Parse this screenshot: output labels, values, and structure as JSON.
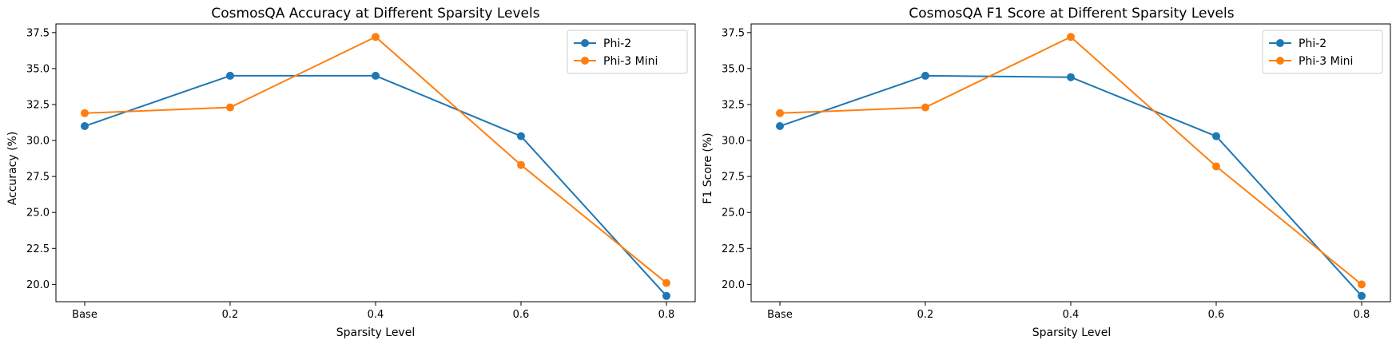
{
  "chart_data": [
    {
      "type": "line",
      "title": "CosmosQA Accuracy at Different Sparsity Levels",
      "xlabel": "Sparsity Level",
      "ylabel": "Accuracy (%)",
      "categories": [
        "Base",
        "0.2",
        "0.4",
        "0.6",
        "0.8"
      ],
      "yticks": [
        "20.0",
        "22.5",
        "25.0",
        "27.5",
        "30.0",
        "32.5",
        "35.0",
        "37.5"
      ],
      "ylim": [
        18.8,
        38.1
      ],
      "grid": false,
      "legend_position": "top-right",
      "series": [
        {
          "name": "Phi-2",
          "color": "#1f77b4",
          "values": [
            31.0,
            34.5,
            34.5,
            30.3,
            19.2
          ]
        },
        {
          "name": "Phi-3 Mini",
          "color": "#ff7f0e",
          "values": [
            31.9,
            32.3,
            37.2,
            28.3,
            20.1
          ]
        }
      ]
    },
    {
      "type": "line",
      "title": "CosmosQA F1 Score at Different Sparsity Levels",
      "xlabel": "Sparsity Level",
      "ylabel": "F1 Score (%)",
      "categories": [
        "Base",
        "0.2",
        "0.4",
        "0.6",
        "0.8"
      ],
      "yticks": [
        "20.0",
        "22.5",
        "25.0",
        "27.5",
        "30.0",
        "32.5",
        "35.0",
        "37.5"
      ],
      "ylim": [
        18.8,
        38.1
      ],
      "grid": false,
      "legend_position": "top-right",
      "series": [
        {
          "name": "Phi-2",
          "color": "#1f77b4",
          "values": [
            31.0,
            34.5,
            34.4,
            30.3,
            19.2
          ]
        },
        {
          "name": "Phi-3 Mini",
          "color": "#ff7f0e",
          "values": [
            31.9,
            32.3,
            37.2,
            28.2,
            20.0
          ]
        }
      ]
    }
  ]
}
